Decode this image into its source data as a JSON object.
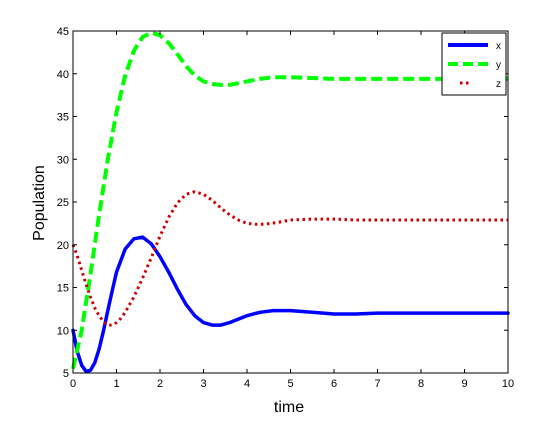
{
  "chart_data": {
    "type": "line",
    "title": "",
    "xlabel": "time",
    "ylabel": "Population",
    "xlim": [
      0,
      10
    ],
    "ylim": [
      5,
      45
    ],
    "xticks": [
      0,
      1,
      2,
      3,
      4,
      5,
      6,
      7,
      8,
      9,
      10
    ],
    "yticks": [
      5,
      10,
      15,
      20,
      25,
      30,
      35,
      40,
      45
    ],
    "grid": false,
    "legend_position": "top-right",
    "series": [
      {
        "name": "x",
        "color": "#0000ff",
        "style": "solid",
        "x": [
          0,
          0.1,
          0.2,
          0.3,
          0.4,
          0.5,
          0.6,
          0.7,
          0.8,
          0.9,
          1.0,
          1.2,
          1.4,
          1.6,
          1.8,
          2.0,
          2.2,
          2.4,
          2.6,
          2.8,
          3.0,
          3.2,
          3.4,
          3.6,
          3.8,
          4.0,
          4.3,
          4.6,
          5.0,
          5.5,
          6.0,
          6.5,
          7.0,
          8.0,
          9.0,
          10.0
        ],
        "y": [
          10.0,
          7.5,
          5.9,
          5.2,
          5.3,
          6.2,
          7.8,
          9.9,
          12.3,
          14.6,
          16.8,
          19.5,
          20.7,
          20.9,
          20.1,
          18.6,
          16.8,
          14.8,
          13.0,
          11.7,
          10.9,
          10.6,
          10.6,
          10.9,
          11.3,
          11.7,
          12.1,
          12.3,
          12.3,
          12.1,
          11.9,
          11.9,
          12.0,
          12.0,
          12.0,
          12.0
        ]
      },
      {
        "name": "y",
        "color": "#00ff00",
        "style": "dashed",
        "x": [
          0,
          0.2,
          0.4,
          0.6,
          0.8,
          1.0,
          1.2,
          1.4,
          1.6,
          1.8,
          2.0,
          2.2,
          2.4,
          2.6,
          2.8,
          3.0,
          3.2,
          3.4,
          3.6,
          3.8,
          4.0,
          4.3,
          4.6,
          5.0,
          5.5,
          6.0,
          6.5,
          7.0,
          8.0,
          9.0,
          10.0
        ],
        "y": [
          5.5,
          10.0,
          16.5,
          23.5,
          30.0,
          35.5,
          39.8,
          42.7,
          44.3,
          44.8,
          44.5,
          43.6,
          42.3,
          40.9,
          39.8,
          39.1,
          38.8,
          38.7,
          38.7,
          38.9,
          39.1,
          39.4,
          39.6,
          39.6,
          39.5,
          39.4,
          39.4,
          39.4,
          39.4,
          39.4,
          39.4
        ]
      },
      {
        "name": "z",
        "color": "#cc0000",
        "style": "dotted",
        "x": [
          0,
          0.1,
          0.2,
          0.3,
          0.4,
          0.5,
          0.6,
          0.7,
          0.8,
          0.9,
          1.0,
          1.1,
          1.2,
          1.4,
          1.6,
          1.8,
          2.0,
          2.2,
          2.4,
          2.6,
          2.8,
          3.0,
          3.2,
          3.4,
          3.6,
          3.8,
          4.0,
          4.2,
          4.4,
          4.7,
          5.0,
          5.5,
          6.0,
          6.5,
          7.0,
          8.0,
          9.0,
          10.0
        ],
        "y": [
          20.0,
          18.7,
          17.0,
          15.4,
          13.9,
          12.6,
          11.7,
          11.0,
          10.6,
          10.6,
          10.9,
          11.4,
          12.1,
          13.9,
          16.1,
          18.5,
          21.0,
          23.2,
          24.9,
          25.9,
          26.2,
          25.9,
          25.2,
          24.3,
          23.5,
          22.9,
          22.5,
          22.4,
          22.4,
          22.6,
          22.9,
          23.0,
          23.0,
          22.9,
          22.9,
          22.9,
          22.9,
          22.9
        ]
      }
    ]
  }
}
